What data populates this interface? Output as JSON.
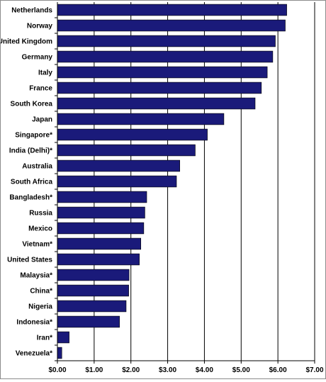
{
  "chart_data": {
    "type": "bar",
    "orientation": "horizontal",
    "title": "",
    "xlabel": "",
    "ylabel": "",
    "xlim": [
      0,
      7
    ],
    "x_ticks": [
      "$0.00",
      "$1.00",
      "$2.00",
      "$3.00",
      "$4.00",
      "$5.00",
      "$6.00",
      "$7.00"
    ],
    "grid": "vertical",
    "bar_color": "#1a1a7a",
    "categories": [
      "Netherlands",
      "Norway",
      "United Kingdom",
      "Germany",
      "Italy",
      "France",
      "South Korea",
      "Japan",
      "Singapore*",
      "India (Delhi)*",
      "Australia",
      "South Africa",
      "Bangladesh*",
      "Russia",
      "Mexico",
      "Vietnam*",
      "United States",
      "Malaysia*",
      "China*",
      "Nigeria",
      "Indonesia*",
      "Iran*",
      "Venezuela*"
    ],
    "values": [
      6.24,
      6.2,
      5.93,
      5.86,
      5.71,
      5.55,
      5.38,
      4.53,
      4.08,
      3.75,
      3.33,
      3.24,
      2.43,
      2.38,
      2.35,
      2.27,
      2.23,
      1.95,
      1.94,
      1.87,
      1.69,
      0.32,
      0.12
    ]
  }
}
